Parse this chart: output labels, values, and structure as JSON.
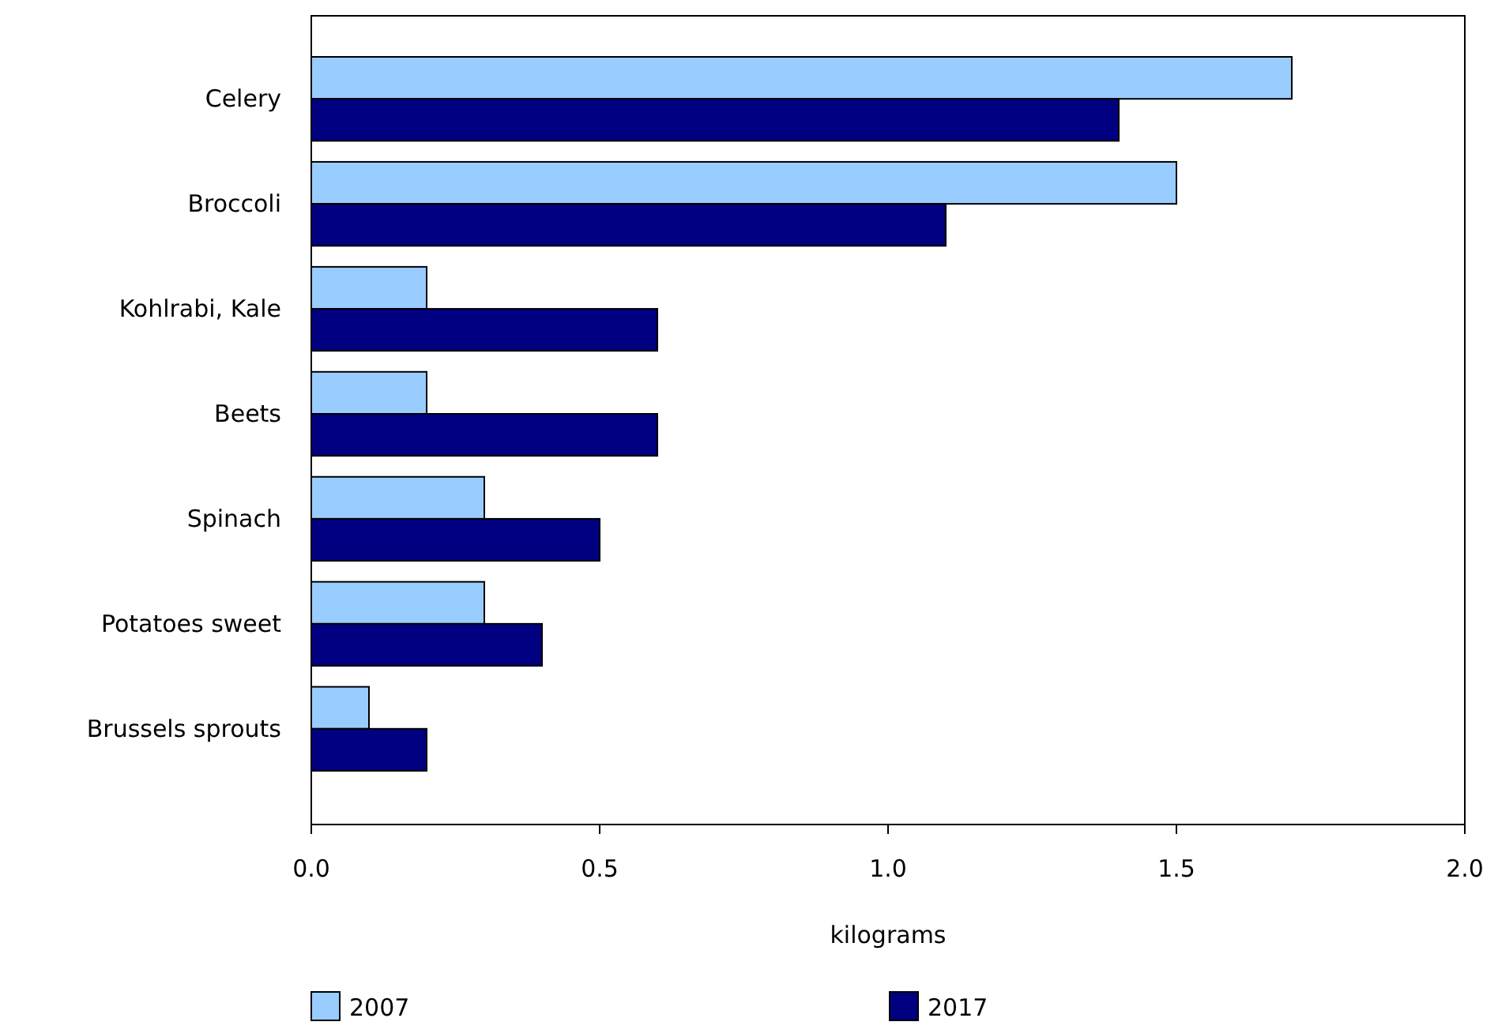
{
  "chart_data": {
    "type": "bar",
    "orientation": "horizontal",
    "xlabel": "kilograms",
    "categories": [
      "Celery",
      "Broccoli",
      "Kohlrabi, Kale",
      "Beets",
      "Spinach",
      "Potatoes sweet",
      "Brussels sprouts"
    ],
    "series": [
      {
        "name": "2007",
        "color": "#99ccff",
        "values": [
          1.7,
          1.5,
          0.2,
          0.2,
          0.3,
          0.3,
          0.1
        ]
      },
      {
        "name": "2017",
        "color": "#000080",
        "values": [
          1.4,
          1.1,
          0.6,
          0.6,
          0.5,
          0.4,
          0.2
        ]
      }
    ],
    "xlim": [
      0,
      2
    ],
    "xticks": [
      {
        "value": 0,
        "label": "0.0"
      },
      {
        "value": 0.5,
        "label": "0.5"
      },
      {
        "value": 1,
        "label": "1.0"
      },
      {
        "value": 1.5,
        "label": "1.5"
      },
      {
        "value": 2,
        "label": "2.0"
      }
    ],
    "grid": false,
    "legend": "bottom"
  }
}
